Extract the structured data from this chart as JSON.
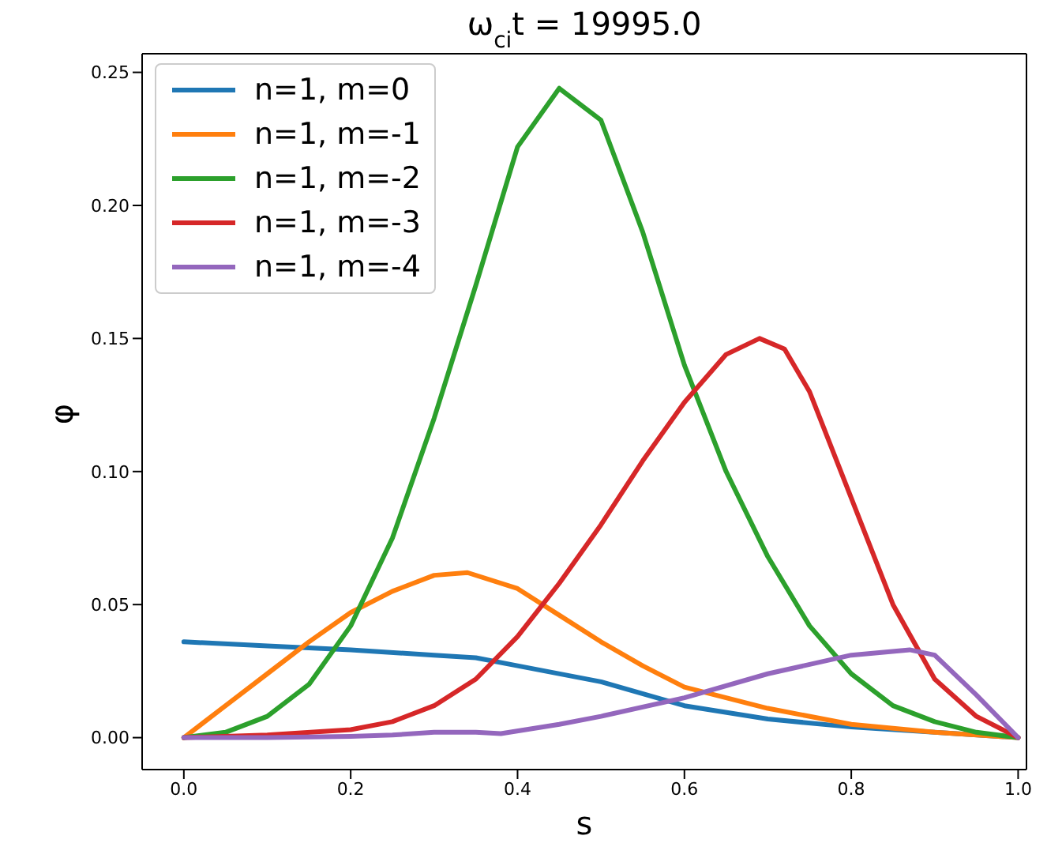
{
  "chart_data": {
    "type": "line",
    "title": "ω$_{ci}$t = 19995.0",
    "xlabel": "s",
    "ylabel": "φ",
    "xlim": [
      -0.05,
      1.01
    ],
    "ylim": [
      -0.012,
      0.257
    ],
    "xticks": [
      {
        "value": 0,
        "label": "0.0"
      },
      {
        "value": 0.2,
        "label": "0.2"
      },
      {
        "value": 0.4,
        "label": "0.4"
      },
      {
        "value": 0.6,
        "label": "0.6"
      },
      {
        "value": 0.8,
        "label": "0.8"
      },
      {
        "value": 1,
        "label": "1.0"
      }
    ],
    "yticks": [
      {
        "value": 0,
        "label": "0.00"
      },
      {
        "value": 0.05,
        "label": "0.05"
      },
      {
        "value": 0.1,
        "label": "0.10"
      },
      {
        "value": 0.15,
        "label": "0.15"
      },
      {
        "value": 0.2,
        "label": "0.20"
      },
      {
        "value": 0.25,
        "label": "0.25"
      }
    ],
    "grid": false,
    "legend": "top left",
    "marker": "none",
    "line_style": "solid",
    "series": [
      {
        "name": "n=1, m=0",
        "color": "#1f77b4",
        "x": [
          0,
          0.1,
          0.2,
          0.3,
          0.35,
          0.4,
          0.5,
          0.6,
          0.7,
          0.8,
          0.9,
          1.0
        ],
        "values": [
          0.036,
          0.0345,
          0.033,
          0.031,
          0.03,
          0.027,
          0.021,
          0.012,
          0.007,
          0.004,
          0.002,
          0
        ]
      },
      {
        "name": "n=1, m=-1",
        "color": "#ff7f0e",
        "x": [
          0,
          0.05,
          0.1,
          0.15,
          0.2,
          0.25,
          0.3,
          0.34,
          0.4,
          0.45,
          0.5,
          0.55,
          0.6,
          0.7,
          0.8,
          0.9,
          1.0
        ],
        "values": [
          0,
          0.012,
          0.024,
          0.036,
          0.047,
          0.055,
          0.061,
          0.062,
          0.056,
          0.046,
          0.036,
          0.027,
          0.019,
          0.011,
          0.005,
          0.002,
          0
        ]
      },
      {
        "name": "n=1, m=-2",
        "color": "#2ca02c",
        "x": [
          0,
          0.05,
          0.1,
          0.15,
          0.2,
          0.25,
          0.3,
          0.35,
          0.4,
          0.45,
          0.5,
          0.55,
          0.6,
          0.65,
          0.7,
          0.75,
          0.8,
          0.85,
          0.9,
          0.95,
          1.0
        ],
        "values": [
          0,
          0.002,
          0.008,
          0.02,
          0.042,
          0.075,
          0.12,
          0.17,
          0.222,
          0.244,
          0.232,
          0.19,
          0.14,
          0.1,
          0.068,
          0.042,
          0.024,
          0.012,
          0.006,
          0.002,
          0
        ]
      },
      {
        "name": "n=1, m=-3",
        "color": "#d62728",
        "x": [
          0,
          0.1,
          0.2,
          0.25,
          0.3,
          0.35,
          0.4,
          0.45,
          0.5,
          0.55,
          0.6,
          0.65,
          0.69,
          0.72,
          0.75,
          0.8,
          0.85,
          0.9,
          0.95,
          1.0
        ],
        "values": [
          0,
          0.001,
          0.003,
          0.006,
          0.012,
          0.022,
          0.038,
          0.058,
          0.08,
          0.104,
          0.126,
          0.144,
          0.15,
          0.146,
          0.13,
          0.09,
          0.05,
          0.022,
          0.008,
          0
        ]
      },
      {
        "name": "n=1, m=-4",
        "color": "#9467bd",
        "x": [
          0,
          0.1,
          0.2,
          0.25,
          0.3,
          0.35,
          0.38,
          0.45,
          0.5,
          0.6,
          0.7,
          0.8,
          0.87,
          0.9,
          0.95,
          1.0
        ],
        "values": [
          0,
          0,
          0.0005,
          0.001,
          0.002,
          0.002,
          0.0015,
          0.005,
          0.008,
          0.015,
          0.024,
          0.031,
          0.033,
          0.031,
          0.016,
          0
        ]
      }
    ]
  }
}
